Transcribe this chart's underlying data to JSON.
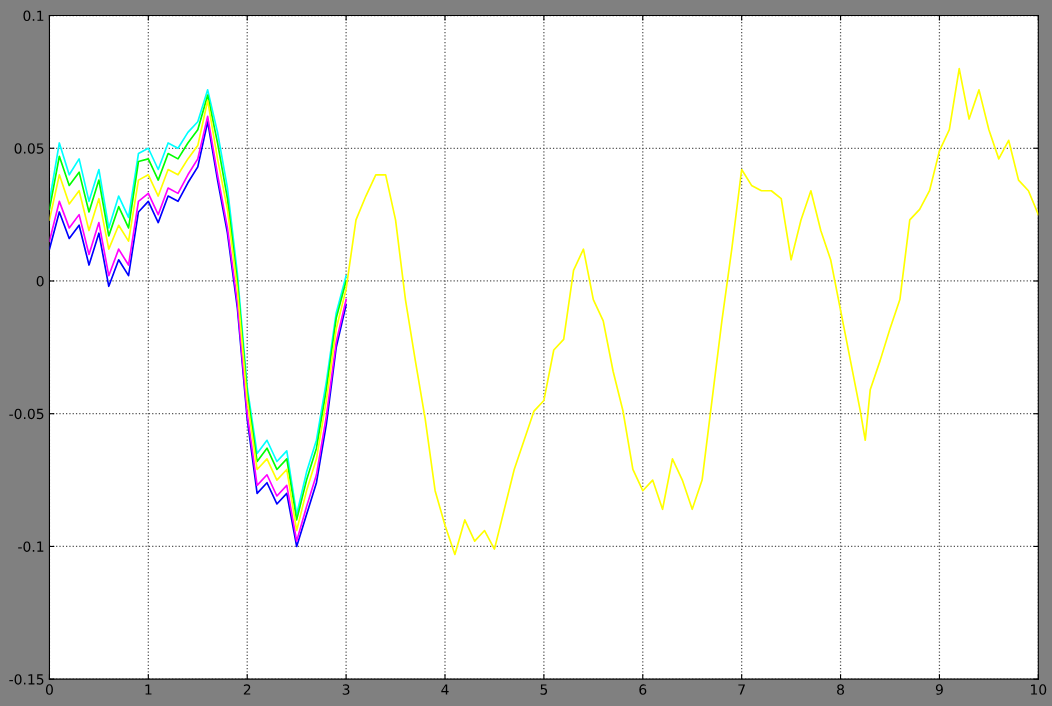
{
  "chart_data": {
    "type": "line",
    "xlim": [
      0,
      10
    ],
    "ylim": [
      -0.15,
      0.1
    ],
    "xticks": [
      0,
      1,
      2,
      3,
      4,
      5,
      6,
      7,
      8,
      9,
      10
    ],
    "yticks": [
      -0.15,
      -0.1,
      -0.05,
      0,
      0.05,
      0.1
    ],
    "grid": true,
    "line_style": "solid",
    "marker": "none",
    "legend": false,
    "series": [
      {
        "color": "#00ffff",
        "x": [
          0,
          0.1,
          0.2,
          0.3,
          0.4,
          0.5,
          0.6,
          0.7,
          0.8,
          0.9,
          1.0,
          1.1,
          1.2,
          1.3,
          1.4,
          1.5,
          1.6,
          1.7,
          1.8,
          1.9,
          2.0,
          2.1,
          2.2,
          2.3,
          2.4,
          2.5,
          2.6,
          2.7,
          2.8,
          2.9,
          3.0
        ],
        "values": [
          0.03,
          0.052,
          0.04,
          0.046,
          0.03,
          0.042,
          0.02,
          0.032,
          0.024,
          0.048,
          0.05,
          0.042,
          0.052,
          0.05,
          0.056,
          0.06,
          0.072,
          0.056,
          0.035,
          0.003,
          -0.04,
          -0.065,
          -0.06,
          -0.068,
          -0.064,
          -0.088,
          -0.072,
          -0.06,
          -0.038,
          -0.012,
          0.002
        ]
      },
      {
        "color": "#00ff00",
        "x": [
          0,
          0.1,
          0.2,
          0.3,
          0.4,
          0.5,
          0.6,
          0.7,
          0.8,
          0.9,
          1.0,
          1.1,
          1.2,
          1.3,
          1.4,
          1.5,
          1.6,
          1.7,
          1.8,
          1.9,
          2.0,
          2.1,
          2.2,
          2.3,
          2.4,
          2.5,
          2.6,
          2.7,
          2.8,
          2.9,
          3.0
        ],
        "values": [
          0.027,
          0.047,
          0.036,
          0.041,
          0.026,
          0.038,
          0.017,
          0.028,
          0.02,
          0.045,
          0.046,
          0.038,
          0.048,
          0.046,
          0.052,
          0.057,
          0.07,
          0.052,
          0.031,
          0.0,
          -0.042,
          -0.068,
          -0.063,
          -0.071,
          -0.067,
          -0.09,
          -0.075,
          -0.063,
          -0.041,
          -0.014,
          0.0
        ]
      },
      {
        "color": "#0000ff",
        "x": [
          0,
          0.1,
          0.2,
          0.3,
          0.4,
          0.5,
          0.6,
          0.7,
          0.8,
          0.9,
          1.0,
          1.1,
          1.2,
          1.3,
          1.4,
          1.5,
          1.6,
          1.7,
          1.8,
          1.9,
          2.0,
          2.1,
          2.2,
          2.3,
          2.4,
          2.5,
          2.6,
          2.7,
          2.8,
          2.9,
          3.0
        ],
        "values": [
          0.012,
          0.026,
          0.016,
          0.021,
          0.006,
          0.018,
          -0.002,
          0.008,
          0.002,
          0.026,
          0.03,
          0.022,
          0.032,
          0.03,
          0.037,
          0.043,
          0.06,
          0.038,
          0.018,
          -0.01,
          -0.052,
          -0.08,
          -0.076,
          -0.084,
          -0.08,
          -0.1,
          -0.088,
          -0.076,
          -0.054,
          -0.025,
          -0.009
        ]
      },
      {
        "color": "#ff00ff",
        "x": [
          0,
          0.1,
          0.2,
          0.3,
          0.4,
          0.5,
          0.6,
          0.7,
          0.8,
          0.9,
          1.0,
          1.1,
          1.2,
          1.3,
          1.4,
          1.5,
          1.6,
          1.7,
          1.8,
          1.9,
          2.0,
          2.1,
          2.2,
          2.3,
          2.4,
          2.5,
          2.6,
          2.7,
          2.8,
          2.9,
          3.0
        ],
        "values": [
          0.015,
          0.03,
          0.02,
          0.025,
          0.01,
          0.022,
          0.002,
          0.012,
          0.006,
          0.03,
          0.033,
          0.025,
          0.035,
          0.033,
          0.04,
          0.046,
          0.062,
          0.04,
          0.02,
          -0.008,
          -0.05,
          -0.077,
          -0.073,
          -0.081,
          -0.077,
          -0.098,
          -0.085,
          -0.073,
          -0.051,
          -0.023,
          -0.007
        ]
      },
      {
        "color": "#ffff00",
        "x": [
          0,
          0.1,
          0.2,
          0.3,
          0.4,
          0.5,
          0.6,
          0.7,
          0.8,
          0.9,
          1.0,
          1.1,
          1.2,
          1.3,
          1.4,
          1.5,
          1.6,
          1.7,
          1.8,
          1.9,
          2.0,
          2.1,
          2.2,
          2.3,
          2.4,
          2.5,
          2.6,
          2.7,
          2.8,
          2.9,
          3.0,
          3.1,
          3.2,
          3.3,
          3.4,
          3.5,
          3.6,
          3.7,
          3.8,
          3.9,
          4.0,
          4.1,
          4.2,
          4.3,
          4.4,
          4.5,
          4.6,
          4.7,
          4.8,
          4.9,
          5.0,
          5.1,
          5.2,
          5.3,
          5.4,
          5.5,
          5.6,
          5.7,
          5.8,
          5.9,
          6.0,
          6.1,
          6.2,
          6.3,
          6.4,
          6.5,
          6.6,
          6.7,
          6.8,
          6.9,
          7.0,
          7.1,
          7.2,
          7.3,
          7.4,
          7.5,
          7.6,
          7.7,
          7.8,
          7.9,
          8.0,
          8.1,
          8.2,
          8.25,
          8.3,
          8.4,
          8.5,
          8.6,
          8.7,
          8.8,
          8.9,
          9.0,
          9.1,
          9.2,
          9.3,
          9.4,
          9.5,
          9.6,
          9.7,
          9.8,
          9.9,
          10.0
        ],
        "values": [
          0.023,
          0.04,
          0.029,
          0.034,
          0.019,
          0.031,
          0.012,
          0.021,
          0.015,
          0.038,
          0.04,
          0.032,
          0.042,
          0.04,
          0.046,
          0.051,
          0.068,
          0.046,
          0.027,
          -0.003,
          -0.045,
          -0.071,
          -0.067,
          -0.075,
          -0.071,
          -0.094,
          -0.079,
          -0.067,
          -0.045,
          -0.018,
          -0.003,
          0.023,
          0.032,
          0.04,
          0.04,
          0.023,
          -0.007,
          -0.03,
          -0.052,
          -0.079,
          -0.092,
          -0.103,
          -0.09,
          -0.098,
          -0.094,
          -0.101,
          -0.086,
          -0.071,
          -0.06,
          -0.049,
          -0.045,
          -0.026,
          -0.022,
          0.004,
          0.012,
          -0.007,
          -0.015,
          -0.034,
          -0.049,
          -0.071,
          -0.079,
          -0.075,
          -0.086,
          -0.067,
          -0.075,
          -0.086,
          -0.075,
          -0.045,
          -0.015,
          0.012,
          0.042,
          0.036,
          0.034,
          0.034,
          0.031,
          0.008,
          0.023,
          0.034,
          0.019,
          0.008,
          -0.011,
          -0.03,
          -0.049,
          -0.06,
          -0.041,
          -0.03,
          -0.018,
          -0.007,
          0.023,
          0.027,
          0.034,
          0.049,
          0.057,
          0.08,
          0.061,
          0.072,
          0.057,
          0.046,
          0.053,
          0.038,
          0.034,
          0.025
        ]
      }
    ]
  }
}
